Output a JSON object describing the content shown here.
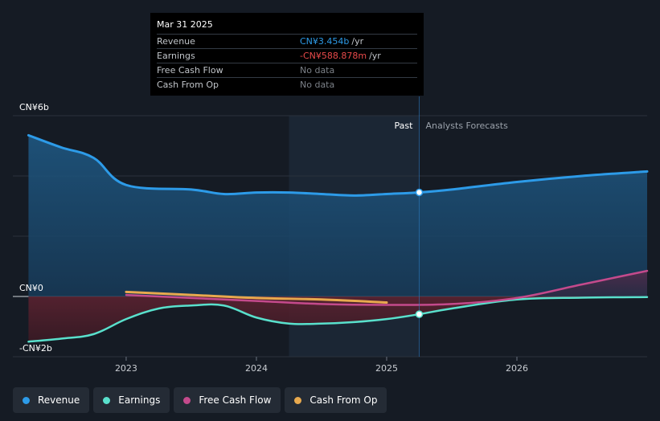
{
  "chart_data": {
    "type": "area",
    "currency": "CN¥",
    "y_axis": {
      "min": -2,
      "max": 6,
      "unit": "billion",
      "labels": [
        {
          "value": 6,
          "text": "CN¥6b"
        },
        {
          "value": 0,
          "text": "CN¥0"
        },
        {
          "value": -2,
          "text": "-CN¥2b"
        }
      ]
    },
    "x_axis": {
      "min": 2022.13,
      "max": 2027.0,
      "ticks": [
        {
          "value": 2023.0,
          "text": "2023"
        },
        {
          "value": 2024.0,
          "text": "2024"
        },
        {
          "value": 2025.0,
          "text": "2025"
        },
        {
          "value": 2026.0,
          "text": "2026"
        }
      ]
    },
    "divider": {
      "x": 2025.25,
      "past_label": "Past",
      "forecast_label": "Analysts Forecasts",
      "shade_start": 2024.25
    },
    "series": [
      {
        "name": "Revenue",
        "color": "#2d9be8",
        "points": [
          [
            2022.25,
            5.35
          ],
          [
            2022.5,
            4.95
          ],
          [
            2022.75,
            4.6
          ],
          [
            2023.0,
            3.7
          ],
          [
            2023.5,
            3.55
          ],
          [
            2023.75,
            3.4
          ],
          [
            2024.0,
            3.45
          ],
          [
            2024.25,
            3.45
          ],
          [
            2024.5,
            3.4
          ],
          [
            2024.75,
            3.35
          ],
          [
            2025.0,
            3.4
          ],
          [
            2025.25,
            3.454
          ],
          [
            2025.5,
            3.55
          ],
          [
            2026.0,
            3.8
          ],
          [
            2026.5,
            4.0
          ],
          [
            2027.0,
            4.15
          ]
        ]
      },
      {
        "name": "Earnings",
        "color": "#59e0cc",
        "points": [
          [
            2022.25,
            -1.5
          ],
          [
            2022.5,
            -1.4
          ],
          [
            2022.75,
            -1.25
          ],
          [
            2023.0,
            -0.75
          ],
          [
            2023.25,
            -0.4
          ],
          [
            2023.5,
            -0.3
          ],
          [
            2023.75,
            -0.3
          ],
          [
            2024.0,
            -0.7
          ],
          [
            2024.25,
            -0.9
          ],
          [
            2024.5,
            -0.9
          ],
          [
            2024.75,
            -0.85
          ],
          [
            2025.0,
            -0.75
          ],
          [
            2025.25,
            -0.589
          ],
          [
            2025.5,
            -0.4
          ],
          [
            2026.0,
            -0.1
          ],
          [
            2026.5,
            -0.04
          ],
          [
            2027.0,
            -0.02
          ]
        ]
      },
      {
        "name": "Free Cash Flow",
        "color": "#c44a8c",
        "points": [
          [
            2023.0,
            0.05
          ],
          [
            2023.5,
            -0.05
          ],
          [
            2024.0,
            -0.15
          ],
          [
            2024.5,
            -0.25
          ],
          [
            2025.0,
            -0.28
          ],
          [
            2025.5,
            -0.25
          ],
          [
            2026.0,
            -0.05
          ],
          [
            2026.5,
            0.4
          ],
          [
            2027.0,
            0.85
          ]
        ]
      },
      {
        "name": "Cash From Op",
        "color": "#e8a94e",
        "points": [
          [
            2023.0,
            0.15
          ],
          [
            2023.5,
            0.05
          ],
          [
            2024.0,
            -0.05
          ],
          [
            2024.5,
            -0.1
          ],
          [
            2025.0,
            -0.2
          ]
        ]
      }
    ],
    "markers": [
      {
        "series": "Revenue",
        "x": 2025.25,
        "y": 3.454
      },
      {
        "series": "Earnings",
        "x": 2025.25,
        "y": -0.589
      }
    ]
  },
  "tooltip": {
    "date": "Mar 31 2025",
    "rows": [
      {
        "label": "Revenue",
        "value": "CN¥3.454b",
        "unit": "/yr",
        "color": "#2d9be8"
      },
      {
        "label": "Earnings",
        "value": "-CN¥588.878m",
        "unit": "/yr",
        "color": "#e84a4a"
      },
      {
        "label": "Free Cash Flow",
        "value": "No data",
        "unit": "",
        "color": ""
      },
      {
        "label": "Cash From Op",
        "value": "No data",
        "unit": "",
        "color": ""
      }
    ]
  },
  "legend": [
    {
      "label": "Revenue",
      "color": "#2d9be8"
    },
    {
      "label": "Earnings",
      "color": "#59e0cc"
    },
    {
      "label": "Free Cash Flow",
      "color": "#c44a8c"
    },
    {
      "label": "Cash From Op",
      "color": "#e8a94e"
    }
  ]
}
